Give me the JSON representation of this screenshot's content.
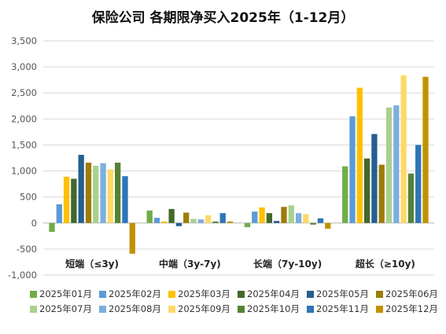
{
  "chart_data": {
    "type": "bar",
    "title": "保险公司 各期限净买入2025年（1-12月）",
    "categories": [
      "短端（≤3y)",
      "中端（3y-7y)",
      "长端（7y-10y)",
      "超长（≥10y)"
    ],
    "ylim": [
      -1000,
      3500
    ],
    "yticks": [
      "-1,000",
      "-500",
      "0",
      "500",
      "1,000",
      "1,500",
      "2,000",
      "2,500",
      "3,000",
      "3,500"
    ],
    "ytick_values": [
      -1000,
      -500,
      0,
      500,
      1000,
      1500,
      2000,
      2500,
      3000,
      3500
    ],
    "grid": true,
    "legend_position": "bottom",
    "series": [
      {
        "name": "2025年01月",
        "color": "#70AD47",
        "values": [
          -170,
          240,
          -80,
          1090
        ]
      },
      {
        "name": "2025年02月",
        "color": "#5B9BD5",
        "values": [
          360,
          100,
          220,
          2050
        ]
      },
      {
        "name": "2025年03月",
        "color": "#FFC000",
        "values": [
          890,
          30,
          300,
          2600
        ]
      },
      {
        "name": "2025年04月",
        "color": "#43682B",
        "values": [
          850,
          270,
          190,
          1240
        ]
      },
      {
        "name": "2025年05月",
        "color": "#255E91",
        "values": [
          1310,
          -60,
          40,
          1710
        ]
      },
      {
        "name": "2025年06月",
        "color": "#9E7C0A",
        "values": [
          1160,
          200,
          310,
          1120
        ]
      },
      {
        "name": "2025年07月",
        "color": "#A9D18E",
        "values": [
          1100,
          80,
          340,
          2220
        ]
      },
      {
        "name": "2025年08月",
        "color": "#7CAFDD",
        "values": [
          1150,
          70,
          190,
          2260
        ]
      },
      {
        "name": "2025年09月",
        "color": "#FFD966",
        "values": [
          1030,
          150,
          170,
          2840
        ]
      },
      {
        "name": "2025年10月",
        "color": "#548235",
        "values": [
          1160,
          30,
          -30,
          950
        ]
      },
      {
        "name": "2025年11月",
        "color": "#2E75B6",
        "values": [
          900,
          190,
          90,
          1500
        ]
      },
      {
        "name": "2025年12月",
        "color": "#C09200",
        "values": [
          -590,
          30,
          -110,
          2810
        ]
      }
    ]
  }
}
